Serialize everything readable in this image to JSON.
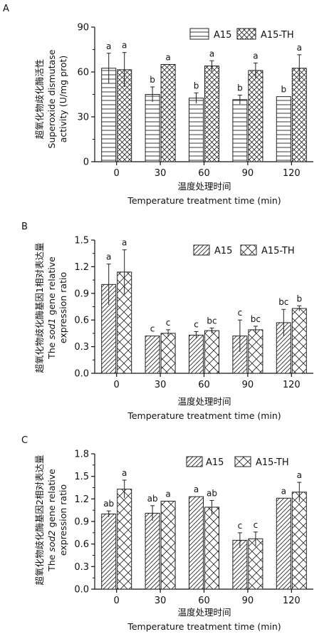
{
  "chart_data": [
    {
      "panel": "A",
      "type": "bar",
      "categories": [
        "0",
        "30",
        "60",
        "90",
        "120"
      ],
      "series": [
        {
          "name": "A15",
          "values": [
            62.5,
            45.0,
            42.5,
            41.5,
            43.5
          ],
          "errors": [
            10.0,
            5.0,
            3.5,
            3.0,
            0
          ],
          "letters": [
            "a",
            "b",
            "b",
            "b",
            "b"
          ],
          "pattern": "hlines"
        },
        {
          "name": "A15-TH",
          "values": [
            61.5,
            65.0,
            64.0,
            61.0,
            62.5
          ],
          "errors": [
            11.5,
            0,
            3.5,
            5.0,
            9.0
          ],
          "letters": [
            "a",
            "a",
            "a",
            "a",
            "a"
          ],
          "pattern": "crosshatch"
        }
      ],
      "ylim": [
        0,
        90
      ],
      "yticks": [
        "0",
        "30",
        "60",
        "90"
      ],
      "ylabel_zh": "超氧化物歧化酶活性",
      "ylabel_en": [
        "Superoxide dismutase",
        "activity (U/mg prot)"
      ],
      "xlabel_zh": "温度处理时间",
      "xlabel_en": "Temperature treatment time (min)",
      "legend": "top-right",
      "grid": false
    },
    {
      "panel": "B",
      "type": "bar",
      "categories": [
        "0",
        "30",
        "60",
        "90",
        "120"
      ],
      "series": [
        {
          "name": "A15",
          "values": [
            1.0,
            0.42,
            0.43,
            0.42,
            0.57
          ],
          "errors": [
            0.23,
            0,
            0.04,
            0.18,
            0.15
          ],
          "letters": [
            "a",
            "c",
            "c",
            "c",
            "bc"
          ],
          "pattern": "diag"
        },
        {
          "name": "A15-TH",
          "values": [
            1.14,
            0.45,
            0.48,
            0.49,
            0.73
          ],
          "errors": [
            0.25,
            0.04,
            0.03,
            0.04,
            0.03
          ],
          "letters": [
            "a",
            "c",
            "bc",
            "bc",
            "b"
          ],
          "pattern": "xdiag"
        }
      ],
      "ylim": [
        0,
        1.5
      ],
      "yticks": [
        "0.0",
        "0.3",
        "0.6",
        "0.9",
        "1.2",
        "1.5"
      ],
      "ylabel_zh": "超氧化物歧化酶基因1相对表达量",
      "ylabel_en_pre": "The ",
      "ylabel_en_gene": "sod1",
      "ylabel_en_post": " gene relative",
      "ylabel_en_line2": "expression ratio",
      "xlabel_zh": "温度处理时间",
      "xlabel_en": "Temperature treatment time (min)",
      "legend": "top-right",
      "grid": false
    },
    {
      "panel": "C",
      "type": "bar",
      "categories": [
        "0",
        "30",
        "60",
        "90",
        "120"
      ],
      "series": [
        {
          "name": "A15",
          "values": [
            1.0,
            1.01,
            1.23,
            0.65,
            1.21
          ],
          "errors": [
            0.04,
            0.1,
            0,
            0.1,
            0
          ],
          "letters": [
            "ab",
            "ab",
            "a",
            "c",
            "a"
          ],
          "pattern": "diag"
        },
        {
          "name": "A15-TH",
          "values": [
            1.33,
            1.17,
            1.09,
            0.67,
            1.29
          ],
          "errors": [
            0.12,
            0,
            0.09,
            0.09,
            0.13
          ],
          "letters": [
            "a",
            "a",
            "ab",
            "c",
            "a"
          ],
          "pattern": "xdiag"
        }
      ],
      "ylim": [
        0,
        1.8
      ],
      "yticks": [
        "0.0",
        "0.3",
        "0.6",
        "0.9",
        "1.2",
        "1.5",
        "1.8"
      ],
      "ylabel_zh": "超氧化物歧化酶基因2相对表达量",
      "ylabel_en_pre": "The ",
      "ylabel_en_gene": "sod2",
      "ylabel_en_post": " gene relative",
      "ylabel_en_line2": "expression ratio",
      "xlabel_zh": "温度处理时间",
      "xlabel_en": "Temperature treatment time (min)",
      "legend": "top-right",
      "grid": false
    }
  ]
}
